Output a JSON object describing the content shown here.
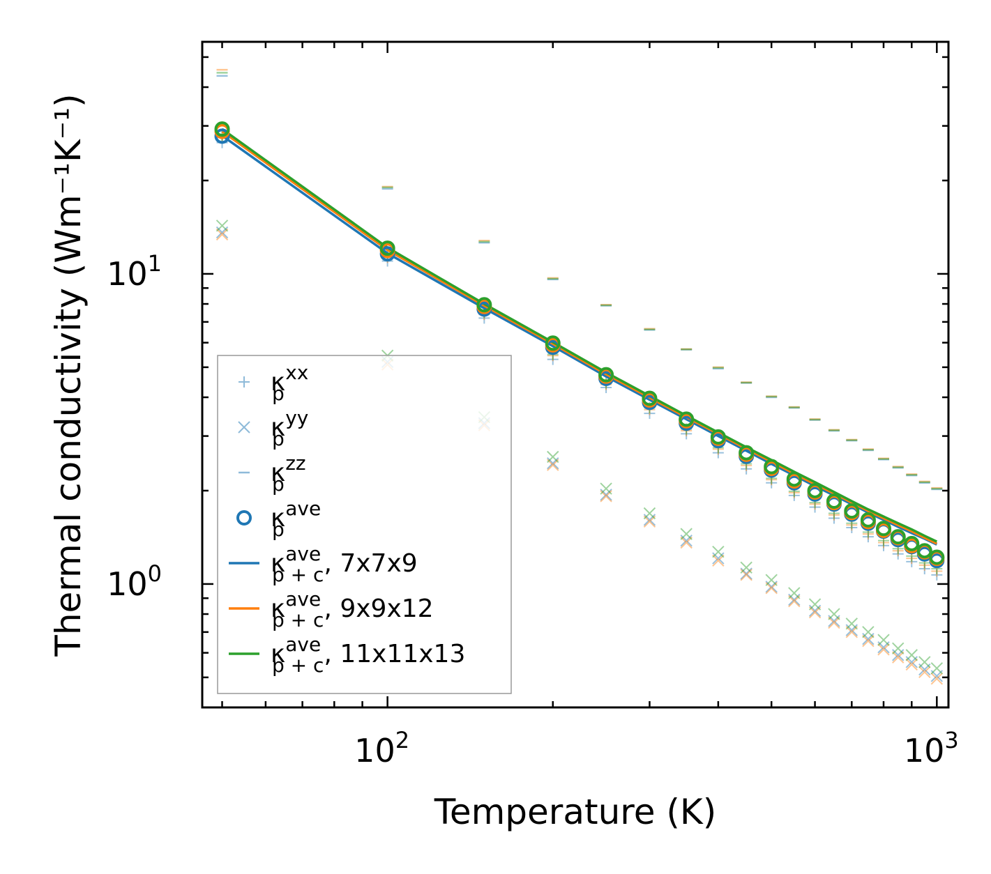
{
  "chart_data": {
    "type": "scatter",
    "title": "",
    "xlabel": "Temperature (K)",
    "ylabel": "Thermal conductivity (Wm⁻¹K⁻¹)",
    "xscale": "log",
    "yscale": "log",
    "xlim": [
      46,
      1050
    ],
    "ylim": [
      0.4,
      56
    ],
    "xticks": [
      {
        "base": "10",
        "exp": "2",
        "value": 100
      },
      {
        "base": "10",
        "exp": "3",
        "value": 1000
      }
    ],
    "yticks": [
      {
        "base": "10",
        "exp": "0",
        "value": 1
      },
      {
        "base": "10",
        "exp": "1",
        "value": 10
      }
    ],
    "legend_position": "lower-left",
    "colors": {
      "blue": "#1f77b4",
      "orange": "#ff7f0e",
      "green": "#2ca02c",
      "zz_faint": "#f5d3b0"
    },
    "legend": [
      {
        "symbol": "κ",
        "sub": "p",
        "sup": "xx",
        "suffix": "",
        "marker": "plus",
        "color": "#1f77b4",
        "alpha": 0.5
      },
      {
        "symbol": "κ",
        "sub": "p",
        "sup": "yy",
        "suffix": "",
        "marker": "x",
        "color": "#1f77b4",
        "alpha": 0.5
      },
      {
        "symbol": "κ",
        "sub": "p",
        "sup": "zz",
        "suffix": "",
        "marker": "dash",
        "color": "#1f77b4",
        "alpha": 0.5
      },
      {
        "symbol": "κ",
        "sub": "p",
        "sup": "ave",
        "suffix": "",
        "marker": "circle",
        "color": "#1f77b4",
        "alpha": 1
      },
      {
        "symbol": "κ",
        "sub": "p + c",
        "sup": "ave",
        "suffix": ", 7x7x9",
        "marker": "line",
        "color": "#1f77b4",
        "alpha": 1
      },
      {
        "symbol": "κ",
        "sub": "p + c",
        "sup": "ave",
        "suffix": ", 9x9x12",
        "marker": "line",
        "color": "#ff7f0e",
        "alpha": 1
      },
      {
        "symbol": "κ",
        "sub": "p + c",
        "sup": "ave",
        "suffix": ", 11x11x13",
        "marker": "line",
        "color": "#2ca02c",
        "alpha": 1
      }
    ],
    "x": [
      50,
      100,
      150,
      200,
      250,
      300,
      350,
      400,
      450,
      500,
      550,
      600,
      650,
      700,
      750,
      800,
      850,
      900,
      950,
      1000
    ],
    "series": [
      {
        "name": "kappa_p_xx 7x7x9",
        "marker": "plus",
        "color": "#1f77b4",
        "alpha": 0.45,
        "values": [
          26.5,
          11.0,
          7.2,
          5.3,
          4.3,
          3.55,
          3.05,
          2.65,
          2.35,
          2.12,
          1.93,
          1.77,
          1.63,
          1.52,
          1.42,
          1.33,
          1.25,
          1.18,
          1.12,
          1.07
        ]
      },
      {
        "name": "kappa_p_xx 9x9x12",
        "marker": "plus",
        "color": "#ff7f0e",
        "alpha": 0.45,
        "values": [
          27.5,
          11.3,
          7.4,
          5.45,
          4.4,
          3.65,
          3.12,
          2.72,
          2.41,
          2.17,
          1.97,
          1.81,
          1.67,
          1.55,
          1.45,
          1.36,
          1.28,
          1.21,
          1.15,
          1.1
        ]
      },
      {
        "name": "kappa_p_xx 11x11x13",
        "marker": "plus",
        "color": "#2ca02c",
        "alpha": 0.45,
        "values": [
          28.0,
          11.5,
          7.5,
          5.5,
          4.45,
          3.7,
          3.16,
          2.75,
          2.44,
          2.19,
          1.99,
          1.83,
          1.69,
          1.57,
          1.47,
          1.38,
          1.3,
          1.23,
          1.17,
          1.12
        ]
      },
      {
        "name": "kappa_p_yy 7x7x9",
        "marker": "x",
        "color": "#1f77b4",
        "alpha": 0.45,
        "values": [
          13.6,
          5.2,
          3.3,
          2.45,
          1.94,
          1.61,
          1.38,
          1.21,
          1.08,
          0.98,
          0.89,
          0.82,
          0.76,
          0.71,
          0.665,
          0.625,
          0.59,
          0.56,
          0.53,
          0.505
        ]
      },
      {
        "name": "kappa_p_yy 9x9x12",
        "marker": "x",
        "color": "#ff7f0e",
        "alpha": 0.45,
        "values": [
          13.4,
          5.1,
          3.25,
          2.42,
          1.92,
          1.59,
          1.36,
          1.19,
          1.07,
          0.97,
          0.88,
          0.81,
          0.75,
          0.7,
          0.655,
          0.615,
          0.58,
          0.55,
          0.52,
          0.495
        ]
      },
      {
        "name": "kappa_p_yy 11x11x13",
        "marker": "x",
        "color": "#2ca02c",
        "alpha": 0.45,
        "values": [
          14.3,
          5.45,
          3.45,
          2.57,
          2.03,
          1.69,
          1.45,
          1.27,
          1.13,
          1.03,
          0.935,
          0.86,
          0.8,
          0.745,
          0.7,
          0.66,
          0.62,
          0.59,
          0.56,
          0.535
        ]
      },
      {
        "name": "kappa_p_zz 7x7x9",
        "marker": "dash",
        "color": "#1f77b4",
        "alpha": 0.45,
        "values": [
          43.5,
          18.8,
          12.6,
          9.6,
          7.9,
          6.6,
          5.7,
          4.95,
          4.45,
          4.0,
          3.7,
          3.38,
          3.12,
          2.9,
          2.7,
          2.52,
          2.37,
          2.24,
          2.12,
          2.02
        ]
      },
      {
        "name": "kappa_p_zz 9x9x12",
        "marker": "dash",
        "color": "#ff7f0e",
        "alpha": 0.45,
        "values": [
          45.5,
          19.1,
          12.8,
          9.7,
          7.95,
          6.65,
          5.72,
          5.0,
          4.47,
          4.03,
          3.72,
          3.4,
          3.14,
          2.92,
          2.72,
          2.54,
          2.39,
          2.26,
          2.14,
          2.04
        ]
      },
      {
        "name": "kappa_p_zz 11x11x13",
        "marker": "dash",
        "color": "#2ca02c",
        "alpha": 0.45,
        "values": [
          44.5,
          19.0,
          12.7,
          9.65,
          7.92,
          6.62,
          5.71,
          4.98,
          4.46,
          4.02,
          3.71,
          3.39,
          3.13,
          2.91,
          2.71,
          2.53,
          2.38,
          2.25,
          2.13,
          2.03
        ]
      },
      {
        "name": "kappa_p_ave 7x7x9",
        "marker": "circle",
        "color": "#1f77b4",
        "alpha": 1,
        "values": [
          27.8,
          11.6,
          7.7,
          5.8,
          4.6,
          3.85,
          3.3,
          2.9,
          2.58,
          2.33,
          2.12,
          1.95,
          1.81,
          1.68,
          1.57,
          1.48,
          1.39,
          1.32,
          1.25,
          1.19
        ]
      },
      {
        "name": "kappa_p_ave 9x9x12",
        "marker": "circle",
        "color": "#ff7f0e",
        "alpha": 1,
        "values": [
          28.8,
          11.9,
          7.85,
          5.9,
          4.68,
          3.92,
          3.36,
          2.95,
          2.62,
          2.36,
          2.15,
          1.98,
          1.83,
          1.7,
          1.59,
          1.49,
          1.41,
          1.33,
          1.27,
          1.21
        ]
      },
      {
        "name": "kappa_p_ave 11x11x13",
        "marker": "circle",
        "color": "#2ca02c",
        "alpha": 1,
        "values": [
          29.3,
          12.1,
          7.95,
          5.98,
          4.73,
          3.97,
          3.4,
          2.98,
          2.65,
          2.39,
          2.18,
          2.0,
          1.85,
          1.72,
          1.61,
          1.51,
          1.42,
          1.35,
          1.28,
          1.22
        ]
      },
      {
        "name": "kappa_p+c_ave 7x7x9",
        "marker": "line",
        "color": "#1f77b4",
        "alpha": 1,
        "values": [
          27.9,
          11.65,
          7.75,
          5.85,
          4.67,
          3.93,
          3.4,
          3.0,
          2.69,
          2.44,
          2.24,
          2.07,
          1.93,
          1.81,
          1.7,
          1.61,
          1.53,
          1.46,
          1.4,
          1.34
        ]
      },
      {
        "name": "kappa_p+c_ave 9x9x12",
        "marker": "line",
        "color": "#ff7f0e",
        "alpha": 1,
        "values": [
          28.8,
          11.95,
          7.9,
          5.95,
          4.75,
          3.99,
          3.45,
          3.05,
          2.73,
          2.48,
          2.27,
          2.1,
          1.96,
          1.83,
          1.72,
          1.63,
          1.55,
          1.48,
          1.41,
          1.35
        ]
      },
      {
        "name": "kappa_p+c_ave 11x11x13",
        "marker": "line",
        "color": "#2ca02c",
        "alpha": 1,
        "values": [
          29.3,
          12.15,
          8.0,
          6.02,
          4.81,
          4.04,
          3.49,
          3.08,
          2.76,
          2.51,
          2.3,
          2.13,
          1.98,
          1.85,
          1.74,
          1.65,
          1.57,
          1.5,
          1.43,
          1.37
        ]
      }
    ]
  }
}
